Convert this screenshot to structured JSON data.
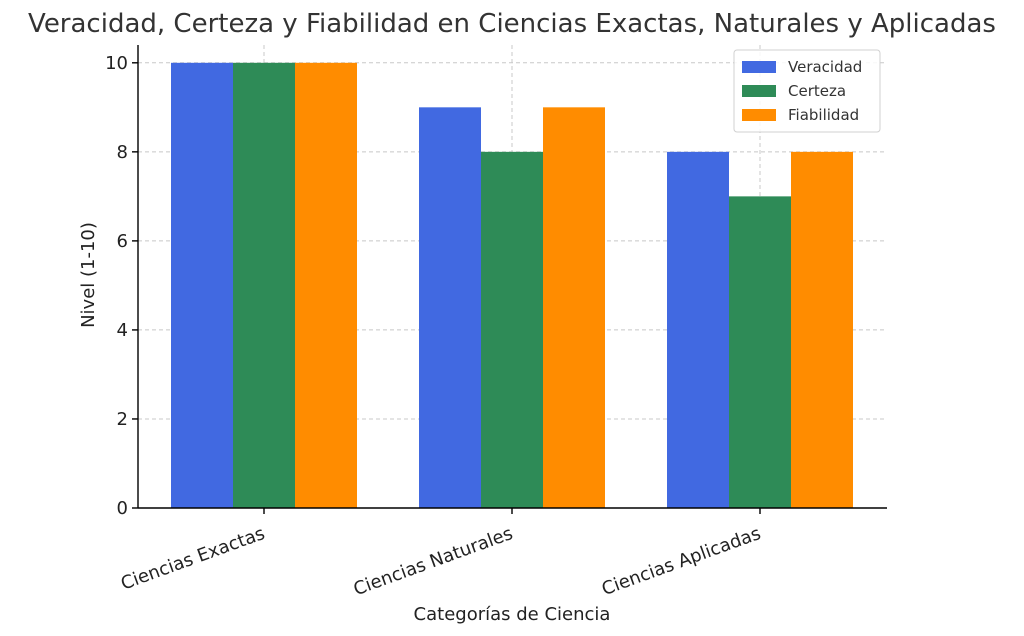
{
  "chart_data": {
    "type": "bar",
    "title": "Veracidad, Certeza y Fiabilidad en Ciencias Exactas, Naturales y Aplicadas",
    "xlabel": "Categorías de Ciencia",
    "ylabel": "Nivel (1-10)",
    "categories": [
      "Ciencias Exactas",
      "Ciencias Naturales",
      "Ciencias Aplicadas"
    ],
    "series": [
      {
        "name": "Veracidad",
        "color": "#4169e1",
        "values": [
          10,
          9,
          8
        ]
      },
      {
        "name": "Certeza",
        "color": "#2e8b57",
        "values": [
          10,
          8,
          7
        ]
      },
      {
        "name": "Fiabilidad",
        "color": "#ff8c00",
        "values": [
          10,
          9,
          8
        ]
      }
    ],
    "ylim": [
      0,
      10.4
    ],
    "yticks": [
      0,
      2,
      4,
      6,
      8,
      10
    ],
    "grid": true,
    "legend_position": "top-right"
  }
}
